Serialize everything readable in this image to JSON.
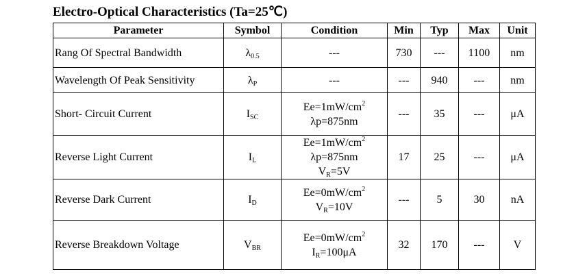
{
  "title": "Electro-Optical Characteristics (Ta=25℃)",
  "table": {
    "header": [
      "Parameter",
      "Symbol",
      "Condition",
      "Min",
      "Typ",
      "Max",
      "Unit"
    ],
    "rows": [
      {
        "parameter": "Rang Of Spectral Bandwidth",
        "symbol": [
          {
            "text": "λ"
          },
          {
            "text": "0.5",
            "style": "sub"
          }
        ],
        "condition": [
          [
            {
              "text": "---"
            }
          ]
        ],
        "min": 730,
        "typ": "---",
        "max": 1100,
        "unit": "nm"
      },
      {
        "parameter": "Wavelength Of Peak Sensitivity",
        "symbol": [
          {
            "text": "λ"
          },
          {
            "text": "P",
            "style": "sub"
          }
        ],
        "condition": [
          [
            {
              "text": "---"
            }
          ]
        ],
        "min": "---",
        "typ": 940,
        "max": "---",
        "unit": "nm"
      },
      {
        "parameter": "Short- Circuit Current",
        "symbol": [
          {
            "text": "I"
          },
          {
            "text": "SC",
            "style": "sub"
          }
        ],
        "condition": [
          [
            {
              "text": "Ee=1mW/cm"
            },
            {
              "text": "2",
              "style": "sup"
            }
          ],
          [
            {
              "text": "λp=875nm"
            }
          ]
        ],
        "min": "---",
        "typ": 35,
        "max": "---",
        "unit": "μA"
      },
      {
        "parameter": "Reverse Light Current",
        "symbol": [
          {
            "text": "I"
          },
          {
            "text": "L",
            "style": "sub"
          }
        ],
        "condition": [
          [
            {
              "text": "Ee=1mW/cm"
            },
            {
              "text": "2",
              "style": "sup"
            }
          ],
          [
            {
              "text": "λp=875nm"
            }
          ],
          [
            {
              "text": "V"
            },
            {
              "text": "R",
              "style": "sub"
            },
            {
              "text": "=5V"
            }
          ]
        ],
        "min": 17,
        "typ": 25,
        "max": "---",
        "unit": "μA"
      },
      {
        "parameter": "Reverse Dark Current",
        "symbol": [
          {
            "text": "I"
          },
          {
            "text": "D",
            "style": "sub"
          }
        ],
        "condition": [
          [
            {
              "text": "Ee=0mW/cm"
            },
            {
              "text": "2",
              "style": "sup"
            }
          ],
          [
            {
              "text": "V"
            },
            {
              "text": "R",
              "style": "sub"
            },
            {
              "text": "=10V"
            }
          ]
        ],
        "min": "---",
        "typ": 5,
        "max": 30,
        "unit": "nA"
      },
      {
        "parameter": "Reverse Breakdown Voltage",
        "symbol": [
          {
            "text": "V"
          },
          {
            "text": "BR",
            "style": "sub"
          }
        ],
        "condition": [
          [
            {
              "text": "Ee=0mW/cm"
            },
            {
              "text": "2",
              "style": "sup"
            }
          ],
          [
            {
              "text": "I"
            },
            {
              "text": "R",
              "style": "sub"
            },
            {
              "text": "=100μA"
            }
          ]
        ],
        "min": 32,
        "typ": 170,
        "max": "---",
        "unit": "V"
      }
    ]
  }
}
